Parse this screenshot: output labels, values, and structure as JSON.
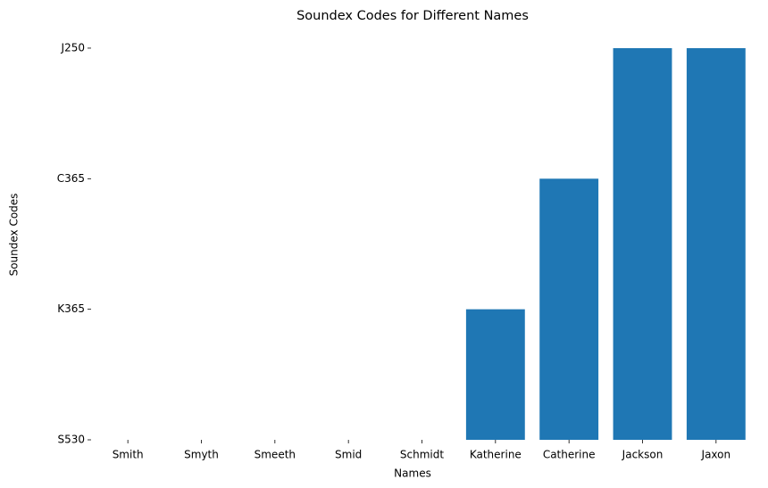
{
  "chart_data": {
    "type": "bar",
    "title": "Soundex Codes for Different Names",
    "x_label": "Names",
    "y_label": "Soundex Codes",
    "categories": [
      "Smith",
      "Smyth",
      "Smeeth",
      "Smid",
      "Schmidt",
      "Katherine",
      "Catherine",
      "Jackson",
      "Jaxon"
    ],
    "values": [
      0,
      0,
      0,
      0,
      0,
      1,
      2,
      3,
      3
    ],
    "color": "#1f77b4",
    "ylim": [
      0,
      3.15
    ],
    "yticks": [
      {
        "value": 0,
        "label": "S530"
      },
      {
        "value": 1,
        "label": "K365"
      },
      {
        "value": 2,
        "label": "C365"
      },
      {
        "value": 3,
        "label": "J250"
      }
    ],
    "grid": false
  }
}
